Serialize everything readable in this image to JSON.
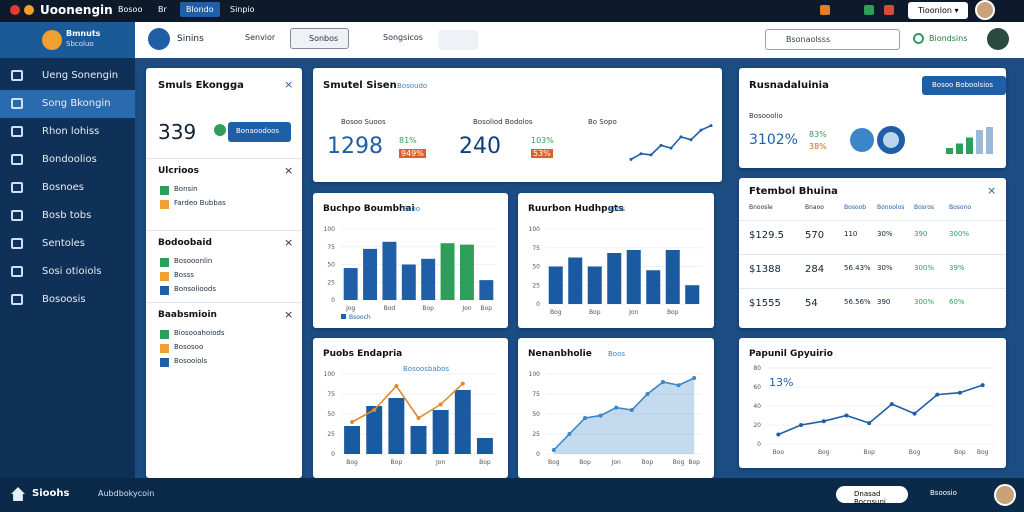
{
  "topbar": {
    "brand": "Uoonengin",
    "menu": [
      "Bosoo",
      "Br",
      "Blondo",
      "Sinpio"
    ],
    "account": "Tioonlon"
  },
  "sidebar": {
    "title": "Bmnuts",
    "subtitle": "Sbcoluo",
    "items": [
      "Ueng Sonengin",
      "Song Bkongin",
      "Rhon lohiss",
      "Bondoolios",
      "Bosnoes",
      "Bosb tobs",
      "Sentoles",
      "Sosi otioiols",
      "Bosoosis"
    ]
  },
  "toolbar": {
    "app": "Sinins",
    "tabs": [
      "Senvior",
      "Sonbos",
      "Songsicos"
    ],
    "search": "Bsonaolsss",
    "status": "Biondsins"
  },
  "left_card": {
    "title": "Smuls Ekongga",
    "value": "339",
    "button": "Bonaoodoos",
    "sections": [
      {
        "title": "Ulcrioos",
        "rows": [
          "Bonsin",
          "Fardeo Bubbas"
        ]
      },
      {
        "title": "Bodoobaid",
        "rows": [
          "Bosooonlin",
          "Bosss",
          "Bonsolioods"
        ]
      },
      {
        "title": "Baabsmioin",
        "rows": [
          "Biosooahoiods",
          "Bososoo",
          "Bosooiols"
        ]
      }
    ]
  },
  "stats_card": {
    "title": "Smutel Sisen",
    "tag": "Bosoudo",
    "metrics": [
      {
        "label": "Bosoo Suoos",
        "value": "1298",
        "change": "81%",
        "sub": "949%"
      },
      {
        "label": "Bosoliod Bodolos",
        "value": "240",
        "change": "103%",
        "sub": "53%"
      }
    ],
    "trend_label": "Bo Sopo",
    "trend": [
      10,
      20,
      18,
      35,
      30,
      50,
      45,
      62,
      70
    ],
    "trend_ylim": [
      0,
      80
    ]
  },
  "charts": [
    {
      "type": "bar",
      "title": "Buchpo Boumbhai",
      "tag": "Bsoo",
      "legend": "Bsooch",
      "categories": [
        "Jog",
        null,
        "Bod",
        null,
        "Bop",
        null,
        "Jon",
        "Bop"
      ],
      "values": [
        45,
        72,
        82,
        50,
        58,
        80,
        78,
        28
      ],
      "colors": [
        "#1f5fa8",
        "#1f5fa8",
        "#1f5fa8",
        "#1f5fa8",
        "#1f5fa8",
        "#2f9e5b",
        "#2f9e5b",
        "#1f5fa8"
      ],
      "ylim": [
        0,
        100
      ],
      "yticks": [
        0,
        25,
        50,
        75,
        100
      ]
    },
    {
      "type": "bar",
      "title": "Ruurbon Hudhpgts",
      "tag": "Boos",
      "categories": [
        "Bog",
        null,
        "Bop",
        null,
        "Jon",
        null,
        "Bop",
        null
      ],
      "values": [
        50,
        62,
        50,
        68,
        72,
        45,
        72,
        25
      ],
      "colors": [
        "#1a5aa0",
        "#1a5aa0",
        "#1a5aa0",
        "#1a5aa0",
        "#1a5aa0",
        "#1a5aa0",
        "#1a5aa0",
        "#1a5aa0"
      ],
      "ylim": [
        0,
        100
      ],
      "yticks": [
        0,
        25,
        50,
        75,
        100
      ]
    },
    {
      "type": "barline",
      "title": "Puobs Endapria",
      "tag": "Bosoosbabos",
      "categories": [
        "Bog",
        null,
        "Bop",
        null,
        "Jon",
        null,
        "Bop"
      ],
      "values": [
        35,
        60,
        70,
        35,
        55,
        80,
        20
      ],
      "line": [
        40,
        55,
        85,
        45,
        62,
        88,
        null
      ],
      "colors": [
        "#1a5aa0",
        "#1a5aa0",
        "#1a5aa0",
        "#1a5aa0",
        "#1a5aa0",
        "#1a5aa0",
        "#1a5aa0"
      ],
      "line_color": "#e38b2c",
      "ylim": [
        0,
        100
      ],
      "yticks": [
        0,
        25,
        50,
        75,
        100
      ]
    },
    {
      "type": "area",
      "title": "Nenanbholie",
      "tag": "Boos",
      "categories": [
        "Bog",
        null,
        "Bop",
        null,
        "Jon",
        null,
        "Bop",
        null,
        "Bog",
        "Bop"
      ],
      "values": [
        5,
        25,
        45,
        48,
        58,
        55,
        75,
        90,
        86,
        95
      ],
      "color": "#3a86c8",
      "ylim": [
        0,
        100
      ],
      "yticks": [
        0,
        25,
        50,
        75,
        100
      ]
    },
    {
      "type": "line",
      "title": "Papunil Gpyuirio",
      "tag": "13%",
      "categories": [
        "Boo",
        null,
        "Bog",
        null,
        "Bop",
        null,
        "Bog",
        null,
        "Bop",
        "Bog"
      ],
      "values": [
        10,
        20,
        24,
        30,
        22,
        42,
        32,
        52,
        54,
        62
      ],
      "color": "#1f5fa8",
      "ylim": [
        0,
        80
      ],
      "yticks": [
        0,
        20,
        40,
        60,
        80
      ]
    }
  ],
  "overview": {
    "title": "Rusnadaluinia",
    "button": "Bosoo Boboolsios",
    "label": "Bosooolio",
    "value": "3102%",
    "change": "83%",
    "sub": "38%",
    "bars": [
      20,
      35,
      55,
      80,
      90
    ],
    "bar_ylim": [
      0,
      100
    ]
  },
  "table": {
    "title": "Ftembol Bhuina",
    "header": [
      "Bnoosle",
      "Bnaoo",
      "Bosoob",
      "Bonoolos",
      "Bosros",
      "Bosono"
    ],
    "rows": [
      [
        "$129.5",
        "570",
        "110",
        "30%",
        "390",
        "300%"
      ],
      [
        "$1388",
        "284",
        "56.43%",
        "30%",
        "300%",
        "39%"
      ],
      [
        "$1555",
        "54",
        "56.56%",
        "390",
        "300%",
        "60%"
      ]
    ]
  },
  "footer": {
    "brand": "Sioohs",
    "path": "Aubdbokycoin",
    "pill": "Dnasad Bocnsuni",
    "link": "Bsoosio"
  }
}
